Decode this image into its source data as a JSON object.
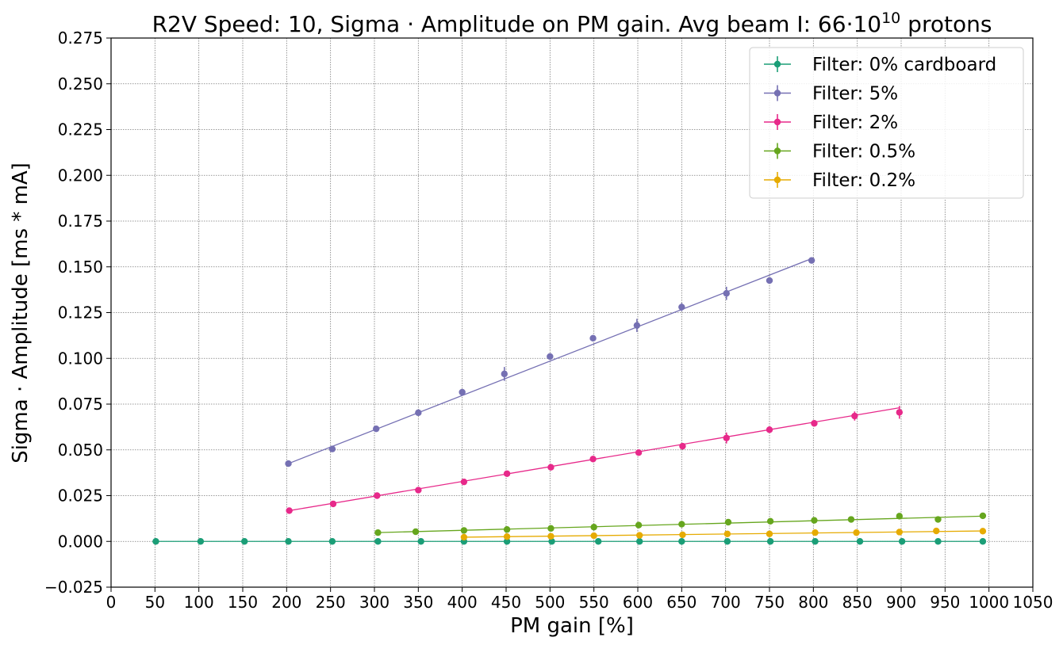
{
  "chart_data": {
    "type": "scatter",
    "title_main": "R2V Speed: 10, Sigma · Amplitude on PM gain. Avg beam I: 66·10",
    "title_sup": "10",
    "title_tail": " protons",
    "xlabel": "PM gain [%]",
    "ylabel": "Sigma · Amplitude [ms * mA]",
    "xlim": [
      0,
      1050
    ],
    "ylim": [
      -0.025,
      0.275
    ],
    "xticks": [
      "0",
      "50",
      "100",
      "150",
      "200",
      "250",
      "300",
      "350",
      "400",
      "450",
      "500",
      "550",
      "600",
      "650",
      "700",
      "750",
      "800",
      "850",
      "900",
      "950",
      "1000",
      "1050"
    ],
    "yticks": [
      "−0.025",
      "0.000",
      "0.025",
      "0.050",
      "0.075",
      "0.100",
      "0.125",
      "0.150",
      "0.175",
      "0.200",
      "0.225",
      "0.250",
      "0.275"
    ],
    "grid": true,
    "legend_position": "top-right",
    "series": [
      {
        "name": "Filter: 0% cardboard",
        "color": "#1b9e77",
        "x": [
          51,
          102,
          152,
          202,
          252,
          304,
          353,
          402,
          451,
          502,
          555,
          602,
          650,
          702,
          751,
          802,
          853,
          901,
          942,
          993
        ],
        "y": [
          0,
          0,
          0,
          0,
          0,
          0,
          0,
          0,
          0,
          0,
          0,
          0,
          0,
          0,
          0,
          0,
          0,
          0,
          0,
          0
        ],
        "err": [
          0,
          0,
          0,
          0,
          0,
          0,
          0,
          0,
          0,
          0,
          0,
          0,
          0,
          0,
          0,
          0,
          0,
          0,
          0,
          0
        ],
        "fit": [
          [
            51,
            0
          ],
          [
            993,
            0
          ]
        ]
      },
      {
        "name": "Filter: 5%",
        "color": "#7570b3",
        "x": [
          202,
          252,
          302,
          350,
          400,
          448,
          500,
          549,
          599,
          650,
          701,
          750,
          798
        ],
        "y": [
          0.0425,
          0.0505,
          0.0615,
          0.0703,
          0.0815,
          0.0915,
          0.101,
          0.111,
          0.118,
          0.128,
          0.1355,
          0.1425,
          0.1535
        ],
        "err": [
          0.001,
          0.0012,
          0.001,
          0.001,
          0.001,
          0.0038,
          0.001,
          0.0016,
          0.0036,
          0.0022,
          0.0036,
          0.001,
          0.001
        ],
        "fit": [
          [
            202,
            0.0425
          ],
          [
            798,
            0.1545
          ]
        ]
      },
      {
        "name": "Filter: 2%",
        "color": "#e7298a",
        "x": [
          203,
          253,
          303,
          350,
          402,
          451,
          501,
          549,
          601,
          651,
          701,
          750,
          801,
          847,
          898
        ],
        "y": [
          0.0168,
          0.0205,
          0.025,
          0.028,
          0.0325,
          0.037,
          0.0405,
          0.045,
          0.0485,
          0.052,
          0.0565,
          0.061,
          0.0645,
          0.0685,
          0.0705
        ],
        "err": [
          0.001,
          0.001,
          0.001,
          0.001,
          0.001,
          0.001,
          0.001,
          0.001,
          0.001,
          0.001,
          0.003,
          0.001,
          0.001,
          0.0025,
          0.0035
        ],
        "fit": [
          [
            203,
            0.0168
          ],
          [
            898,
            0.073
          ]
        ]
      },
      {
        "name": "Filter: 0.5%",
        "color": "#66a61e",
        "x": [
          304,
          347,
          402,
          451,
          501,
          550,
          601,
          650,
          703,
          751,
          801,
          843,
          898,
          942,
          993
        ],
        "y": [
          0.0048,
          0.0053,
          0.006,
          0.0065,
          0.0071,
          0.0078,
          0.0089,
          0.0094,
          0.0105,
          0.011,
          0.0115,
          0.012,
          0.0138,
          0.012,
          0.014
        ],
        "err": [
          0.0005,
          0.0005,
          0.0005,
          0.0005,
          0.0005,
          0.0005,
          0.0005,
          0.0005,
          0.0005,
          0.0005,
          0.0005,
          0.0005,
          0.0005,
          0.0005,
          0.0005
        ],
        "fit": [
          [
            304,
            0.0048
          ],
          [
            993,
            0.0138
          ]
        ]
      },
      {
        "name": "Filter: 0.2%",
        "color": "#e6ab02",
        "x": [
          402,
          451,
          501,
          550,
          602,
          651,
          702,
          750,
          802,
          849,
          898,
          940,
          993
        ],
        "y": [
          0.0023,
          0.0026,
          0.0028,
          0.0031,
          0.0033,
          0.0036,
          0.0041,
          0.0041,
          0.0048,
          0.0048,
          0.0051,
          0.0057,
          0.0056
        ],
        "err": [
          0.0004,
          0.0004,
          0.0004,
          0.0004,
          0.0004,
          0.0004,
          0.0004,
          0.0004,
          0.0004,
          0.0004,
          0.0004,
          0.0004,
          0.0004
        ],
        "fit": [
          [
            402,
            0.0023
          ],
          [
            993,
            0.0057
          ]
        ]
      }
    ]
  }
}
